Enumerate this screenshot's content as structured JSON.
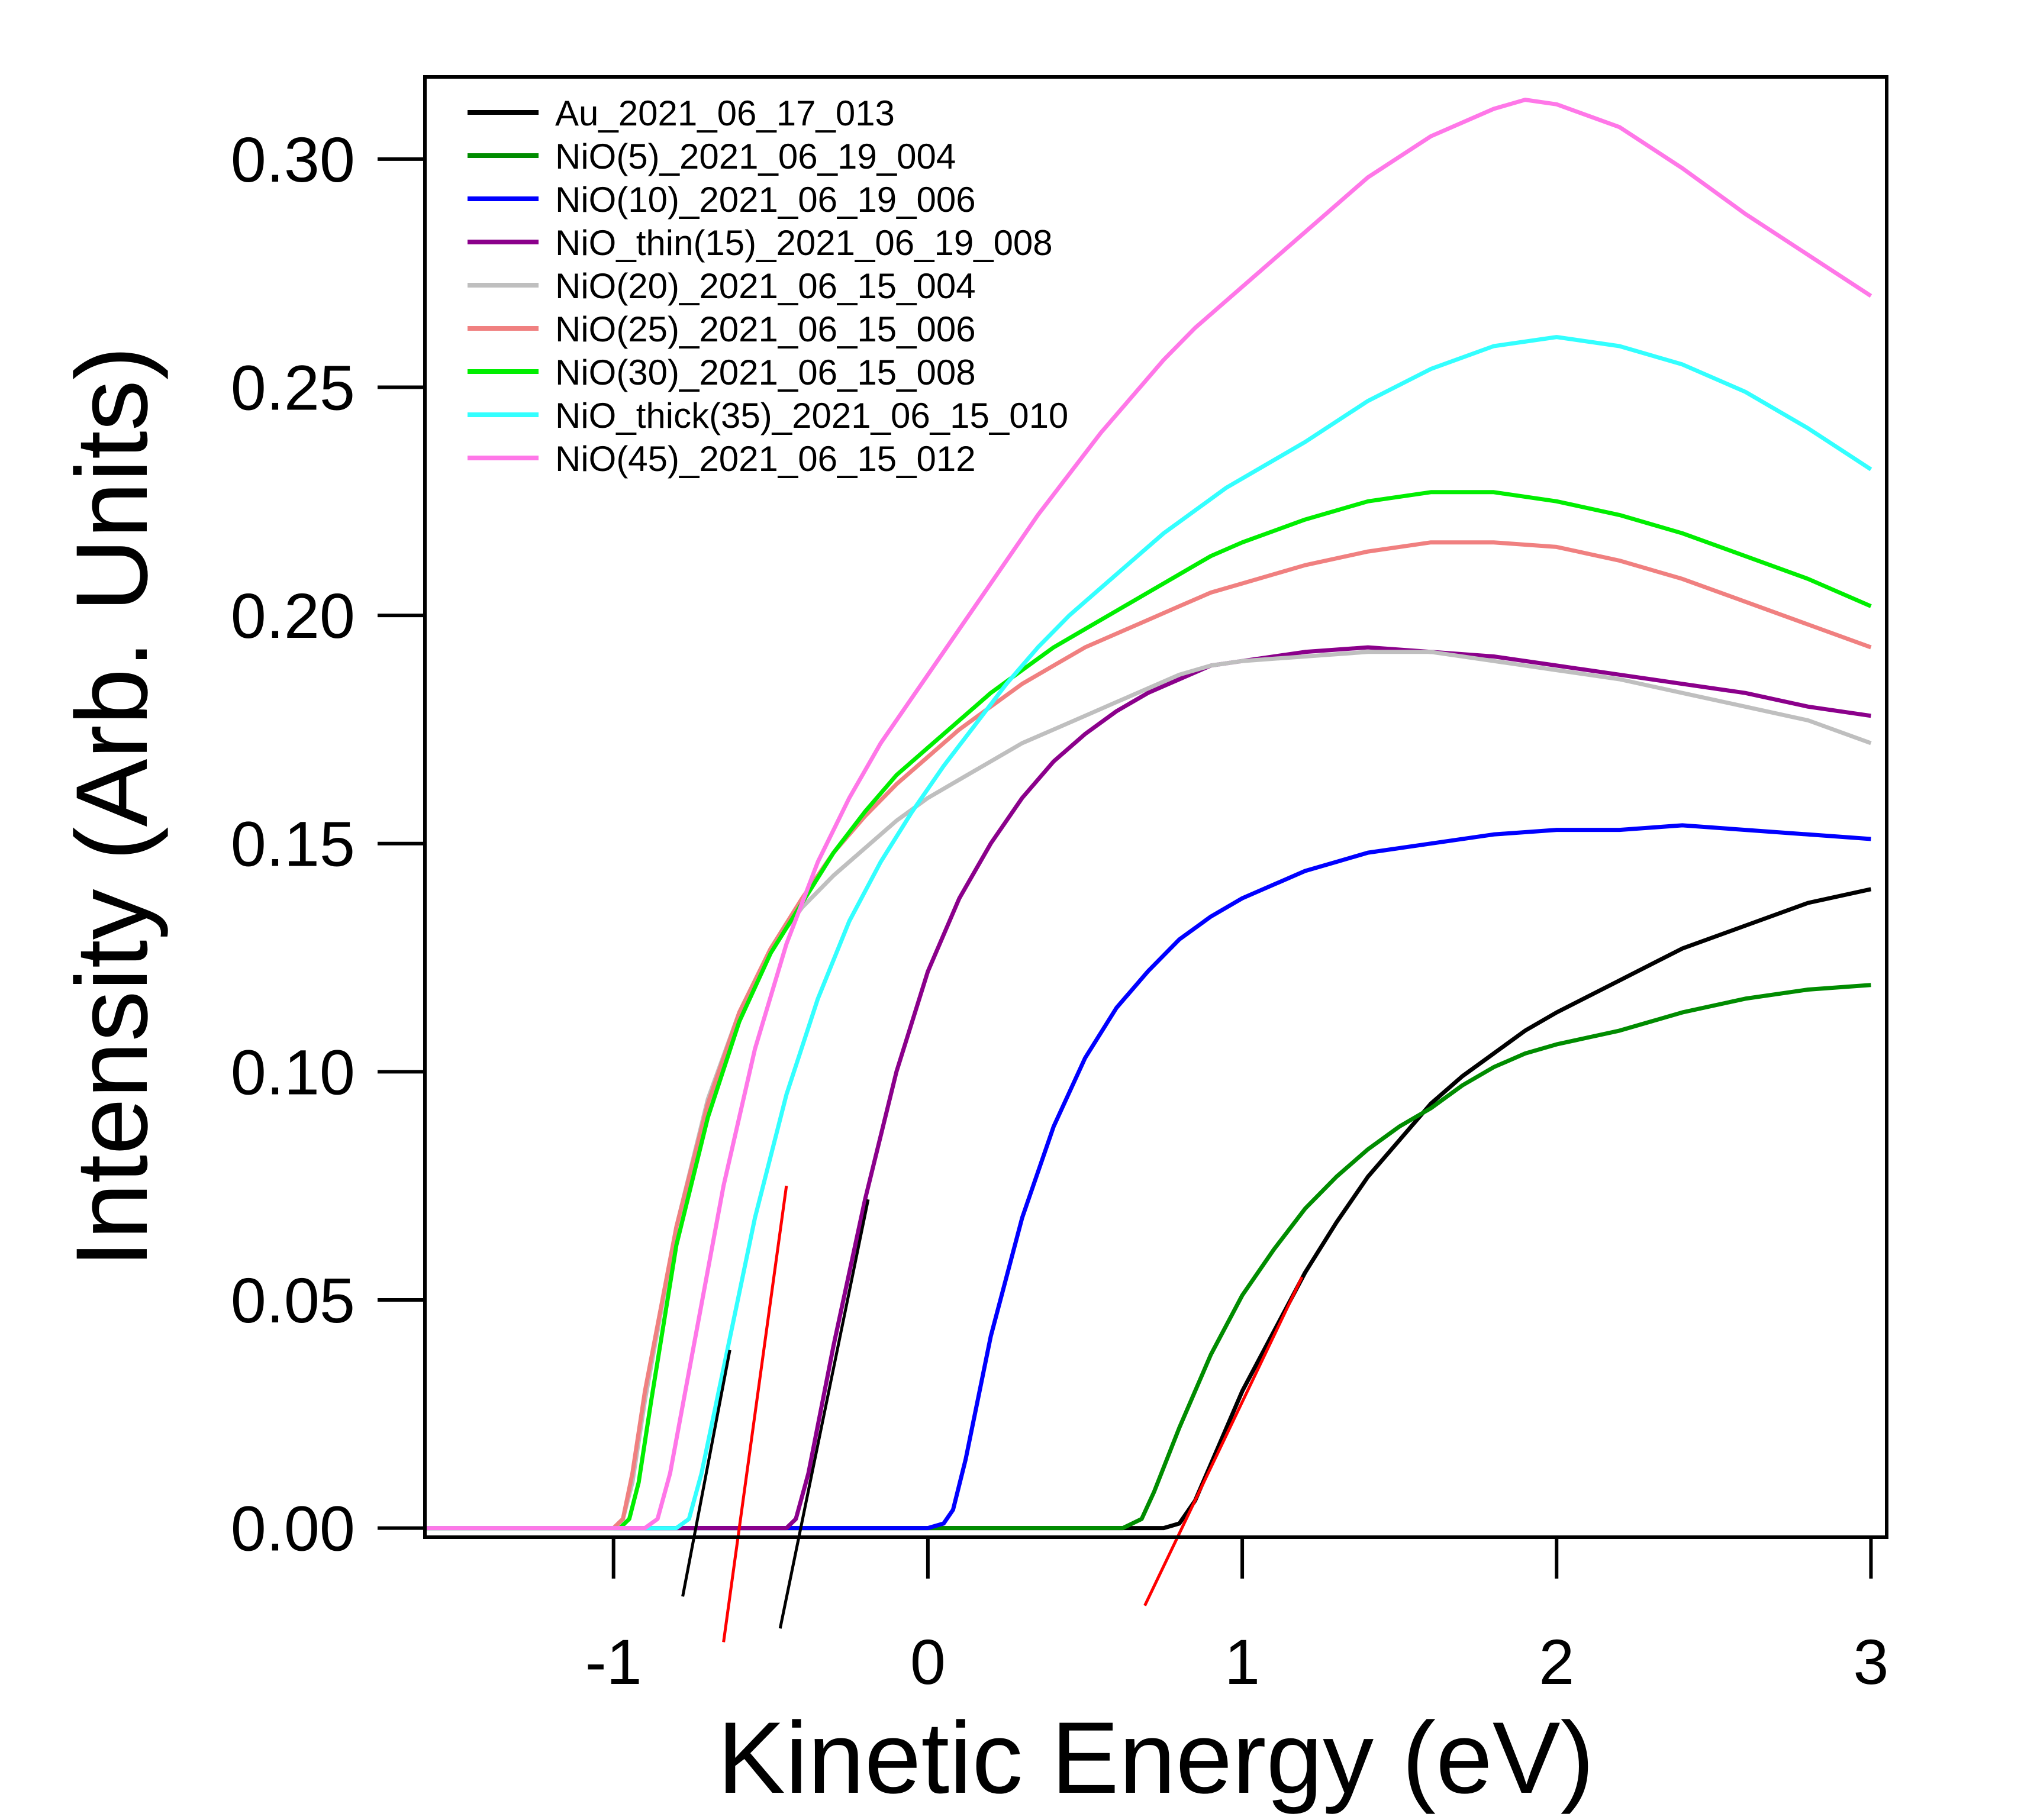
{
  "chart_data": {
    "type": "line",
    "xlabel": "Kinetic Energy (eV)",
    "ylabel": "Intensity (Arb. Units)",
    "xlim": [
      -1.6,
      3.05
    ],
    "ylim": [
      -0.002,
      0.318
    ],
    "xticks": [
      -1,
      0,
      1,
      2,
      3
    ],
    "yticks": [
      0.0,
      0.05,
      0.1,
      0.15,
      0.2,
      0.25,
      0.3
    ],
    "ytick_labels": [
      "0.00",
      "0.05",
      "0.10",
      "0.15",
      "0.20",
      "0.25",
      "0.30"
    ],
    "legend_position": "top-left",
    "grid": false,
    "series": [
      {
        "name": "Au_2021_06_17_013",
        "color": "#000000",
        "points": [
          [
            -1.6,
            0
          ],
          [
            0.75,
            0
          ],
          [
            0.8,
            0.001
          ],
          [
            0.85,
            0.006
          ],
          [
            0.9,
            0.014
          ],
          [
            1.0,
            0.03
          ],
          [
            1.1,
            0.043
          ],
          [
            1.2,
            0.056
          ],
          [
            1.3,
            0.067
          ],
          [
            1.4,
            0.077
          ],
          [
            1.5,
            0.085
          ],
          [
            1.6,
            0.093
          ],
          [
            1.7,
            0.099
          ],
          [
            1.8,
            0.104
          ],
          [
            1.9,
            0.109
          ],
          [
            2.0,
            0.113
          ],
          [
            2.2,
            0.12
          ],
          [
            2.4,
            0.127
          ],
          [
            2.6,
            0.132
          ],
          [
            2.8,
            0.137
          ],
          [
            3.0,
            0.14
          ]
        ]
      },
      {
        "name": "NiO(5)_2021_06_19_004",
        "color": "#008c00",
        "points": [
          [
            -1.6,
            0
          ],
          [
            0.62,
            0
          ],
          [
            0.68,
            0.002
          ],
          [
            0.72,
            0.008
          ],
          [
            0.8,
            0.022
          ],
          [
            0.9,
            0.038
          ],
          [
            1.0,
            0.051
          ],
          [
            1.1,
            0.061
          ],
          [
            1.2,
            0.07
          ],
          [
            1.3,
            0.077
          ],
          [
            1.4,
            0.083
          ],
          [
            1.5,
            0.088
          ],
          [
            1.6,
            0.092
          ],
          [
            1.7,
            0.097
          ],
          [
            1.8,
            0.101
          ],
          [
            1.9,
            0.104
          ],
          [
            2.0,
            0.106
          ],
          [
            2.2,
            0.109
          ],
          [
            2.4,
            0.113
          ],
          [
            2.6,
            0.116
          ],
          [
            2.8,
            0.118
          ],
          [
            3.0,
            0.119
          ]
        ]
      },
      {
        "name": "NiO(10)_2021_06_19_006",
        "color": "#0000ff",
        "points": [
          [
            -1.6,
            0
          ],
          [
            0.0,
            0
          ],
          [
            0.05,
            0.001
          ],
          [
            0.08,
            0.004
          ],
          [
            0.12,
            0.015
          ],
          [
            0.2,
            0.042
          ],
          [
            0.3,
            0.068
          ],
          [
            0.4,
            0.088
          ],
          [
            0.5,
            0.103
          ],
          [
            0.6,
            0.114
          ],
          [
            0.7,
            0.122
          ],
          [
            0.8,
            0.129
          ],
          [
            0.9,
            0.134
          ],
          [
            1.0,
            0.138
          ],
          [
            1.1,
            0.141
          ],
          [
            1.2,
            0.144
          ],
          [
            1.3,
            0.146
          ],
          [
            1.4,
            0.148
          ],
          [
            1.6,
            0.15
          ],
          [
            1.8,
            0.152
          ],
          [
            2.0,
            0.153
          ],
          [
            2.2,
            0.153
          ],
          [
            2.4,
            0.154
          ],
          [
            2.6,
            0.153
          ],
          [
            2.8,
            0.152
          ],
          [
            3.0,
            0.151
          ]
        ]
      },
      {
        "name": "NiO_thin(15)_2021_06_19_008",
        "color": "#8b008b",
        "points": [
          [
            -1.6,
            0
          ],
          [
            -0.45,
            0
          ],
          [
            -0.42,
            0.002
          ],
          [
            -0.38,
            0.012
          ],
          [
            -0.3,
            0.04
          ],
          [
            -0.2,
            0.072
          ],
          [
            -0.1,
            0.1
          ],
          [
            0.0,
            0.122
          ],
          [
            0.1,
            0.138
          ],
          [
            0.2,
            0.15
          ],
          [
            0.3,
            0.16
          ],
          [
            0.4,
            0.168
          ],
          [
            0.5,
            0.174
          ],
          [
            0.6,
            0.179
          ],
          [
            0.7,
            0.183
          ],
          [
            0.8,
            0.186
          ],
          [
            0.9,
            0.189
          ],
          [
            1.0,
            0.19
          ],
          [
            1.2,
            0.192
          ],
          [
            1.4,
            0.193
          ],
          [
            1.6,
            0.192
          ],
          [
            1.8,
            0.191
          ],
          [
            2.0,
            0.189
          ],
          [
            2.2,
            0.187
          ],
          [
            2.4,
            0.185
          ],
          [
            2.6,
            0.183
          ],
          [
            2.8,
            0.18
          ],
          [
            3.0,
            0.178
          ]
        ]
      },
      {
        "name": "NiO(20)_2021_06_15_004",
        "color": "#bfbfbf",
        "points": [
          [
            -1.6,
            0
          ],
          [
            -1.0,
            0
          ],
          [
            -0.97,
            0.002
          ],
          [
            -0.94,
            0.01
          ],
          [
            -0.9,
            0.028
          ],
          [
            -0.8,
            0.066
          ],
          [
            -0.7,
            0.094
          ],
          [
            -0.6,
            0.113
          ],
          [
            -0.5,
            0.127
          ],
          [
            -0.4,
            0.136
          ],
          [
            -0.3,
            0.143
          ],
          [
            -0.2,
            0.149
          ],
          [
            -0.1,
            0.155
          ],
          [
            0.0,
            0.16
          ],
          [
            0.1,
            0.164
          ],
          [
            0.2,
            0.168
          ],
          [
            0.3,
            0.172
          ],
          [
            0.4,
            0.175
          ],
          [
            0.5,
            0.178
          ],
          [
            0.6,
            0.181
          ],
          [
            0.7,
            0.184
          ],
          [
            0.8,
            0.187
          ],
          [
            0.9,
            0.189
          ],
          [
            1.0,
            0.19
          ],
          [
            1.2,
            0.191
          ],
          [
            1.4,
            0.192
          ],
          [
            1.6,
            0.192
          ],
          [
            1.8,
            0.19
          ],
          [
            2.0,
            0.188
          ],
          [
            2.2,
            0.186
          ],
          [
            2.4,
            0.183
          ],
          [
            2.6,
            0.18
          ],
          [
            2.8,
            0.177
          ],
          [
            3.0,
            0.172
          ]
        ]
      },
      {
        "name": "NiO(25)_2021_06_15_006",
        "color": "#f08080",
        "points": [
          [
            -1.6,
            0
          ],
          [
            -1.0,
            0
          ],
          [
            -0.97,
            0.002
          ],
          [
            -0.94,
            0.012
          ],
          [
            -0.9,
            0.03
          ],
          [
            -0.8,
            0.066
          ],
          [
            -0.7,
            0.093
          ],
          [
            -0.6,
            0.113
          ],
          [
            -0.5,
            0.127
          ],
          [
            -0.4,
            0.138
          ],
          [
            -0.3,
            0.148
          ],
          [
            -0.2,
            0.156
          ],
          [
            -0.1,
            0.163
          ],
          [
            0.0,
            0.169
          ],
          [
            0.1,
            0.175
          ],
          [
            0.2,
            0.18
          ],
          [
            0.3,
            0.185
          ],
          [
            0.4,
            0.189
          ],
          [
            0.5,
            0.193
          ],
          [
            0.6,
            0.196
          ],
          [
            0.7,
            0.199
          ],
          [
            0.8,
            0.202
          ],
          [
            0.9,
            0.205
          ],
          [
            1.0,
            0.207
          ],
          [
            1.2,
            0.211
          ],
          [
            1.4,
            0.214
          ],
          [
            1.6,
            0.216
          ],
          [
            1.8,
            0.216
          ],
          [
            2.0,
            0.215
          ],
          [
            2.2,
            0.212
          ],
          [
            2.4,
            0.208
          ],
          [
            2.6,
            0.203
          ],
          [
            2.8,
            0.198
          ],
          [
            3.0,
            0.193
          ]
        ]
      },
      {
        "name": "NiO(30)_2021_06_15_008",
        "color": "#00ee00",
        "points": [
          [
            -1.6,
            0
          ],
          [
            -0.98,
            0
          ],
          [
            -0.95,
            0.002
          ],
          [
            -0.92,
            0.01
          ],
          [
            -0.88,
            0.028
          ],
          [
            -0.8,
            0.062
          ],
          [
            -0.7,
            0.09
          ],
          [
            -0.6,
            0.111
          ],
          [
            -0.5,
            0.126
          ],
          [
            -0.4,
            0.137
          ],
          [
            -0.3,
            0.148
          ],
          [
            -0.2,
            0.157
          ],
          [
            -0.1,
            0.165
          ],
          [
            0.0,
            0.171
          ],
          [
            0.1,
            0.177
          ],
          [
            0.2,
            0.183
          ],
          [
            0.3,
            0.188
          ],
          [
            0.4,
            0.193
          ],
          [
            0.5,
            0.197
          ],
          [
            0.6,
            0.201
          ],
          [
            0.7,
            0.205
          ],
          [
            0.8,
            0.209
          ],
          [
            0.9,
            0.213
          ],
          [
            1.0,
            0.216
          ],
          [
            1.2,
            0.221
          ],
          [
            1.4,
            0.225
          ],
          [
            1.6,
            0.227
          ],
          [
            1.8,
            0.227
          ],
          [
            2.0,
            0.225
          ],
          [
            2.2,
            0.222
          ],
          [
            2.4,
            0.218
          ],
          [
            2.6,
            0.213
          ],
          [
            2.8,
            0.208
          ],
          [
            3.0,
            0.202
          ]
        ]
      },
      {
        "name": "NiO_thick(35)_2021_06_15_010",
        "color": "#33ffff",
        "points": [
          [
            -1.6,
            0
          ],
          [
            -0.8,
            0
          ],
          [
            -0.76,
            0.002
          ],
          [
            -0.72,
            0.012
          ],
          [
            -0.65,
            0.035
          ],
          [
            -0.55,
            0.068
          ],
          [
            -0.45,
            0.095
          ],
          [
            -0.35,
            0.116
          ],
          [
            -0.25,
            0.133
          ],
          [
            -0.15,
            0.146
          ],
          [
            -0.05,
            0.157
          ],
          [
            0.05,
            0.167
          ],
          [
            0.15,
            0.176
          ],
          [
            0.25,
            0.185
          ],
          [
            0.35,
            0.193
          ],
          [
            0.45,
            0.2
          ],
          [
            0.55,
            0.206
          ],
          [
            0.65,
            0.212
          ],
          [
            0.75,
            0.218
          ],
          [
            0.85,
            0.223
          ],
          [
            0.95,
            0.228
          ],
          [
            1.05,
            0.232
          ],
          [
            1.2,
            0.238
          ],
          [
            1.4,
            0.247
          ],
          [
            1.6,
            0.254
          ],
          [
            1.8,
            0.259
          ],
          [
            2.0,
            0.261
          ],
          [
            2.2,
            0.259
          ],
          [
            2.4,
            0.255
          ],
          [
            2.6,
            0.249
          ],
          [
            2.8,
            0.241
          ],
          [
            3.0,
            0.232
          ]
        ]
      },
      {
        "name": "NiO(45)_2021_06_15_012",
        "color": "#ff77e8",
        "points": [
          [
            -1.6,
            0
          ],
          [
            -0.9,
            0
          ],
          [
            -0.86,
            0.002
          ],
          [
            -0.82,
            0.012
          ],
          [
            -0.75,
            0.038
          ],
          [
            -0.65,
            0.075
          ],
          [
            -0.55,
            0.105
          ],
          [
            -0.45,
            0.128
          ],
          [
            -0.35,
            0.146
          ],
          [
            -0.25,
            0.16
          ],
          [
            -0.15,
            0.172
          ],
          [
            -0.05,
            0.182
          ],
          [
            0.05,
            0.192
          ],
          [
            0.15,
            0.202
          ],
          [
            0.25,
            0.212
          ],
          [
            0.35,
            0.222
          ],
          [
            0.45,
            0.231
          ],
          [
            0.55,
            0.24
          ],
          [
            0.65,
            0.248
          ],
          [
            0.75,
            0.256
          ],
          [
            0.85,
            0.263
          ],
          [
            0.95,
            0.269
          ],
          [
            1.05,
            0.275
          ],
          [
            1.2,
            0.284
          ],
          [
            1.4,
            0.296
          ],
          [
            1.6,
            0.305
          ],
          [
            1.8,
            0.311
          ],
          [
            1.9,
            0.313
          ],
          [
            2.0,
            0.312
          ],
          [
            2.2,
            0.307
          ],
          [
            2.4,
            0.298
          ],
          [
            2.6,
            0.288
          ],
          [
            2.8,
            0.279
          ],
          [
            3.0,
            0.27
          ]
        ]
      }
    ],
    "fit_lines": [
      {
        "color": "#000000",
        "points": [
          [
            -0.78,
            -0.015
          ],
          [
            -0.63,
            0.039
          ]
        ]
      },
      {
        "color": "#ff0000",
        "points": [
          [
            -0.65,
            -0.025
          ],
          [
            -0.45,
            0.075
          ]
        ]
      },
      {
        "color": "#000000",
        "points": [
          [
            -0.47,
            -0.022
          ],
          [
            -0.19,
            0.072
          ]
        ]
      },
      {
        "color": "#ff0000",
        "points": [
          [
            0.69,
            -0.017
          ],
          [
            1.19,
            0.055
          ]
        ]
      }
    ]
  }
}
